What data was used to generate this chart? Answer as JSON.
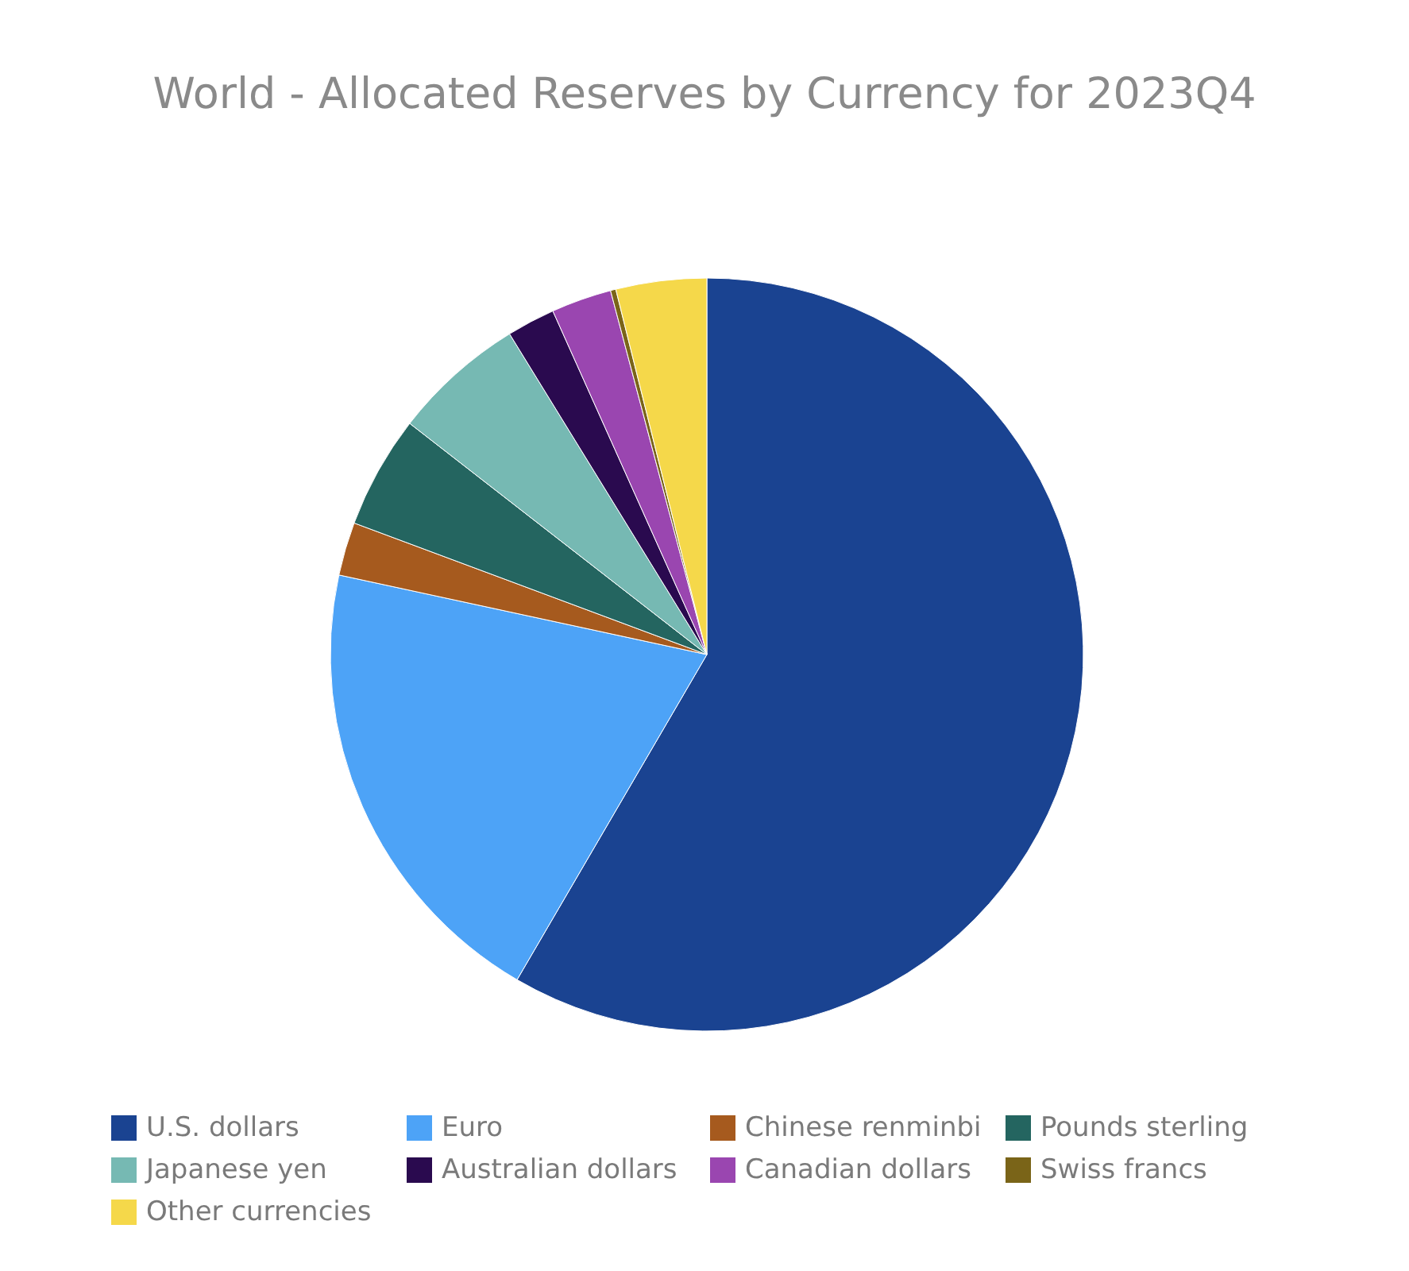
{
  "chart_data": {
    "type": "pie",
    "title": "World - Allocated Reserves by Currency for 2023Q4",
    "categories": [
      "U.S. dollars",
      "Euro",
      "Chinese renminbi",
      "Pounds sterling",
      "Japanese yen",
      "Australian dollars",
      "Canadian dollars",
      "Swiss francs",
      "Other currencies"
    ],
    "values": [
      58.41,
      19.98,
      2.29,
      4.84,
      5.7,
      2.07,
      2.59,
      0.23,
      3.89
    ],
    "colors": [
      "#1a4391",
      "#4da3f7",
      "#a65a1e",
      "#246560",
      "#76b9b3",
      "#2a0a4f",
      "#9a46b0",
      "#7a6418",
      "#f5d84a"
    ],
    "legend": "bottom"
  }
}
